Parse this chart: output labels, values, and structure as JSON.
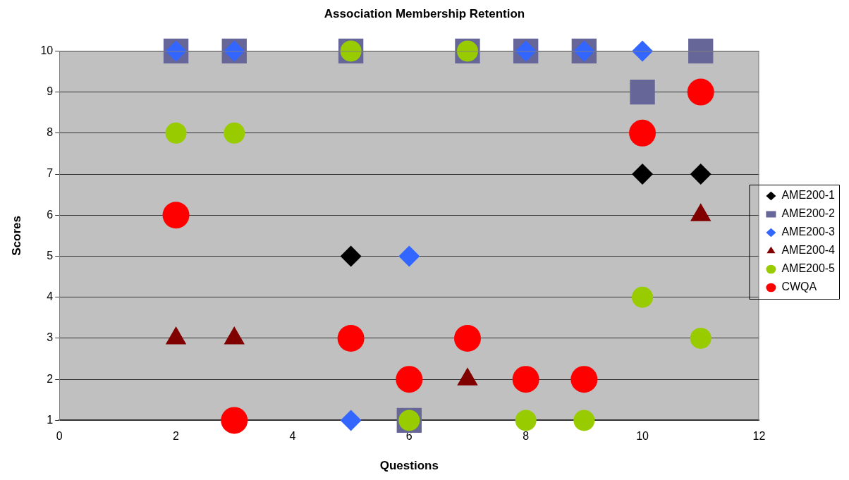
{
  "chart_data": {
    "type": "scatter",
    "title": "Association Membership Retention",
    "xlabel": "Questions",
    "ylabel": "Scores",
    "x": [
      2,
      3,
      5,
      6,
      7,
      8,
      9,
      10,
      11
    ],
    "series": [
      {
        "name": "AME200-1",
        "color": "#000000",
        "marker": "diamond",
        "values": [
          null,
          null,
          5,
          null,
          null,
          null,
          null,
          7,
          7
        ]
      },
      {
        "name": "AME200-2",
        "color": "#666699",
        "marker": "square",
        "values": [
          10,
          10,
          10,
          1,
          10,
          10,
          10,
          9,
          10
        ]
      },
      {
        "name": "AME200-3",
        "color": "#3366ff",
        "marker": "diamond",
        "values": [
          10,
          10,
          1,
          5,
          null,
          10,
          10,
          10,
          null
        ]
      },
      {
        "name": "AME200-4",
        "color": "#800000",
        "marker": "triangle",
        "values": [
          3,
          3,
          null,
          null,
          2,
          null,
          null,
          null,
          6
        ]
      },
      {
        "name": "AME200-5",
        "color": "#99cc00",
        "marker": "circle",
        "values": [
          8,
          8,
          10,
          1,
          10,
          1,
          1,
          4,
          3
        ]
      },
      {
        "name": "CWQA",
        "color": "#ff0000",
        "marker": "circle",
        "values": [
          6,
          1,
          3,
          2,
          3,
          2,
          2,
          8,
          9
        ]
      }
    ],
    "xlim": [
      0,
      12
    ],
    "xticks": [
      0,
      2,
      4,
      6,
      8,
      10,
      12
    ],
    "ylim": [
      1,
      10
    ],
    "yticks": [
      1,
      2,
      3,
      4,
      5,
      6,
      7,
      8,
      9,
      10
    ],
    "grid": "y",
    "legend": "right"
  }
}
